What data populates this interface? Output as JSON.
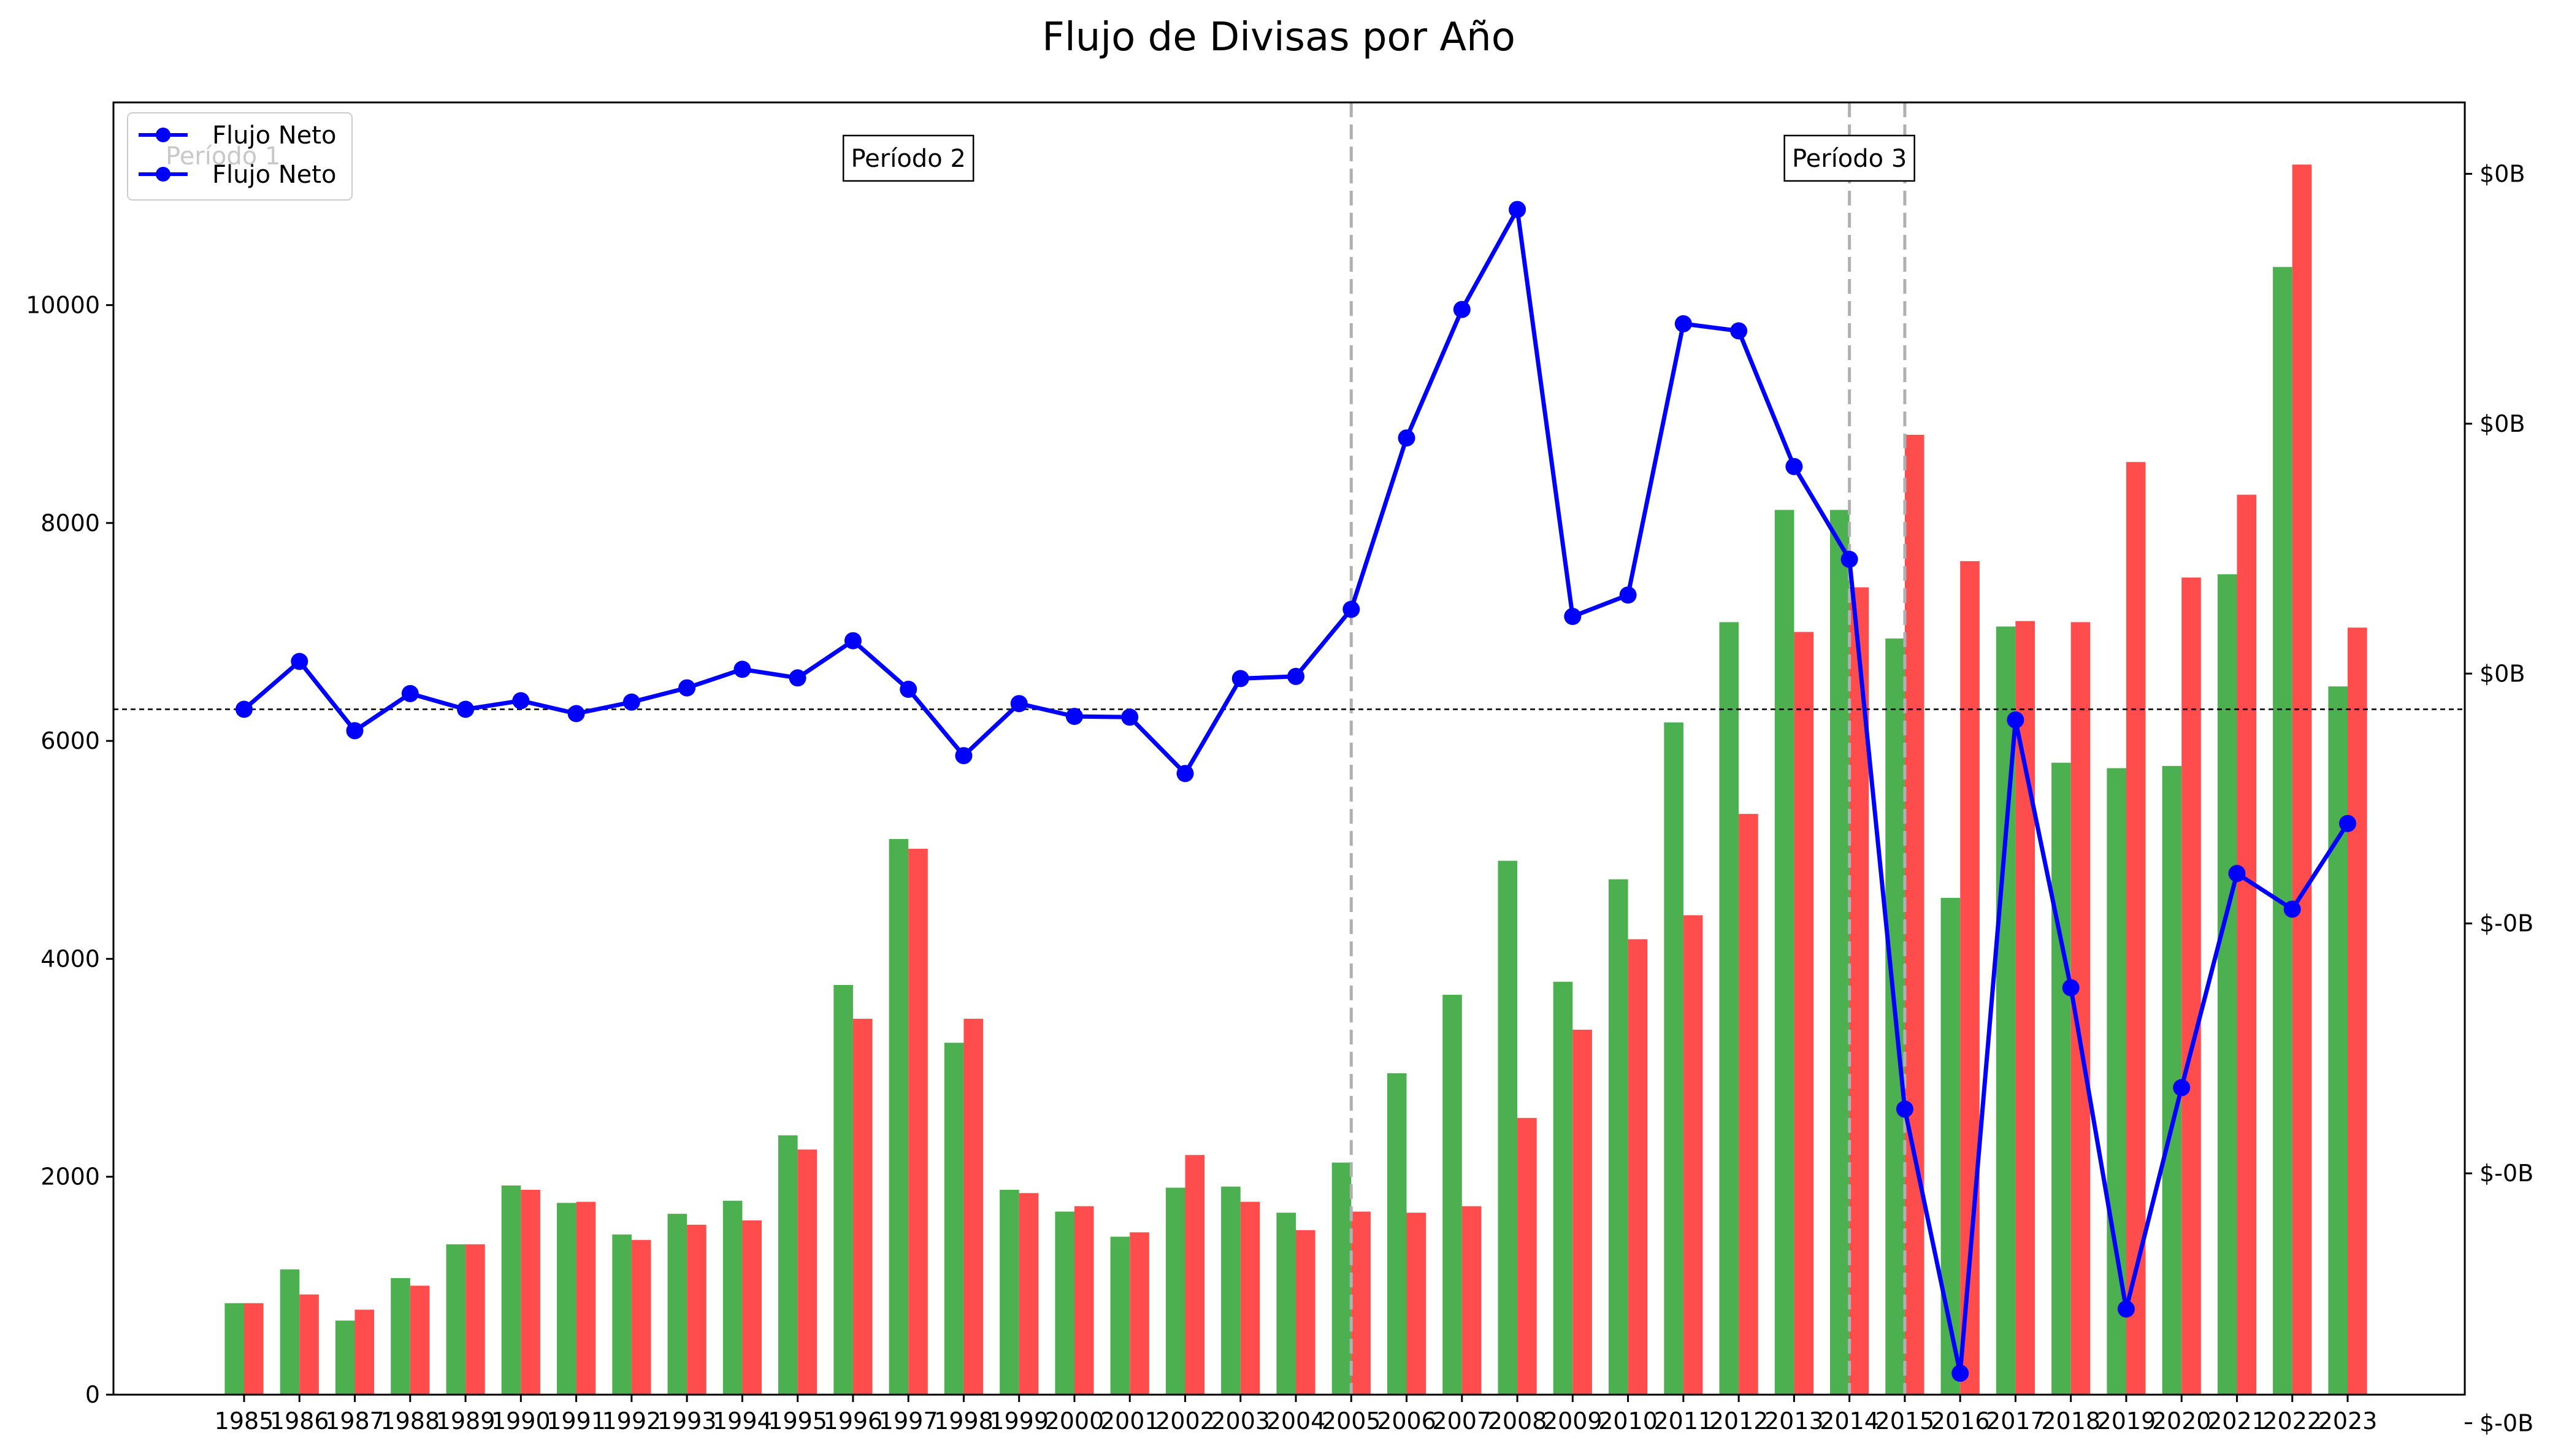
{
  "chart_data": {
    "type": "bar",
    "title": "Flujo de Divisas por Año",
    "categories": [
      "1985",
      "1986",
      "1987",
      "1988",
      "1989",
      "1990",
      "1991",
      "1992",
      "1993",
      "1994",
      "1995",
      "1996",
      "1997",
      "1998",
      "1999",
      "2000",
      "2001",
      "2002",
      "2003",
      "2004",
      "2005",
      "2006",
      "2007",
      "2008",
      "2009",
      "2010",
      "2011",
      "2012",
      "2013",
      "2014",
      "2015",
      "2016",
      "2017",
      "2018",
      "2019",
      "2020",
      "2021",
      "2022",
      "2023"
    ],
    "series": [
      {
        "type": "bar",
        "axis": "left",
        "color": "#4caf50",
        "values": [
          840,
          1150,
          680,
          1070,
          1380,
          1920,
          1760,
          1470,
          1660,
          1780,
          2380,
          3760,
          5100,
          3230,
          1880,
          1680,
          1450,
          1900,
          1910,
          1670,
          2130,
          2950,
          3670,
          4900,
          3790,
          4730,
          6170,
          7090,
          8120,
          8120,
          6940,
          4560,
          7050,
          5800,
          5750,
          5770,
          7530,
          10350,
          6500
        ]
      },
      {
        "type": "bar",
        "axis": "left",
        "color": "#ff4d4d",
        "values": [
          840,
          920,
          780,
          1000,
          1380,
          1880,
          1770,
          1420,
          1560,
          1600,
          2250,
          3450,
          5010,
          3450,
          1850,
          1730,
          1490,
          2200,
          1770,
          1510,
          1680,
          1670,
          1730,
          2540,
          3350,
          4180,
          4400,
          5330,
          7000,
          7410,
          8810,
          7650,
          7100,
          7090,
          8560,
          7500,
          8260,
          11290,
          7040
        ]
      },
      {
        "name": "Flujo Neto",
        "type": "line",
        "axis": "right",
        "color": "#0000ff",
        "values": [
          0,
          0.067,
          -0.03,
          0.022,
          0,
          0.012,
          -0.006,
          0.01,
          0.03,
          0.056,
          0.044,
          0.096,
          0.028,
          -0.065,
          0.008,
          -0.01,
          -0.011,
          -0.09,
          0.043,
          0.046,
          0.14,
          0.38,
          0.56,
          0.7,
          0.13,
          0.16,
          0.54,
          0.53,
          0.34,
          0.21,
          -0.56,
          -0.93,
          -0.015,
          -0.39,
          -0.84,
          -0.53,
          -0.23,
          -0.28,
          -0.16
        ]
      }
    ],
    "ylim_left": [
      0,
      11860
    ],
    "yticks_left": [
      "0",
      "2000",
      "4000",
      "6000",
      "8000",
      "10000"
    ],
    "ylim_right": [
      -0.96,
      0.85
    ],
    "yticks_right": [
      "$-0B",
      "$-0B",
      "$-0B",
      "$0B",
      "$0B",
      "$0B"
    ],
    "right_axis_zero_line": 0,
    "legend": {
      "placement": "top-left",
      "entries": [
        "Flujo Neto",
        "Flujo Neto"
      ],
      "hidden_text": "Período 1"
    },
    "periods": {
      "boundaries": [
        "2005",
        "2014",
        "2015"
      ],
      "labels": [
        {
          "text": "Período 2",
          "at": "1997"
        },
        {
          "text": "Período 3",
          "at": "2014"
        }
      ]
    },
    "grid": false
  }
}
